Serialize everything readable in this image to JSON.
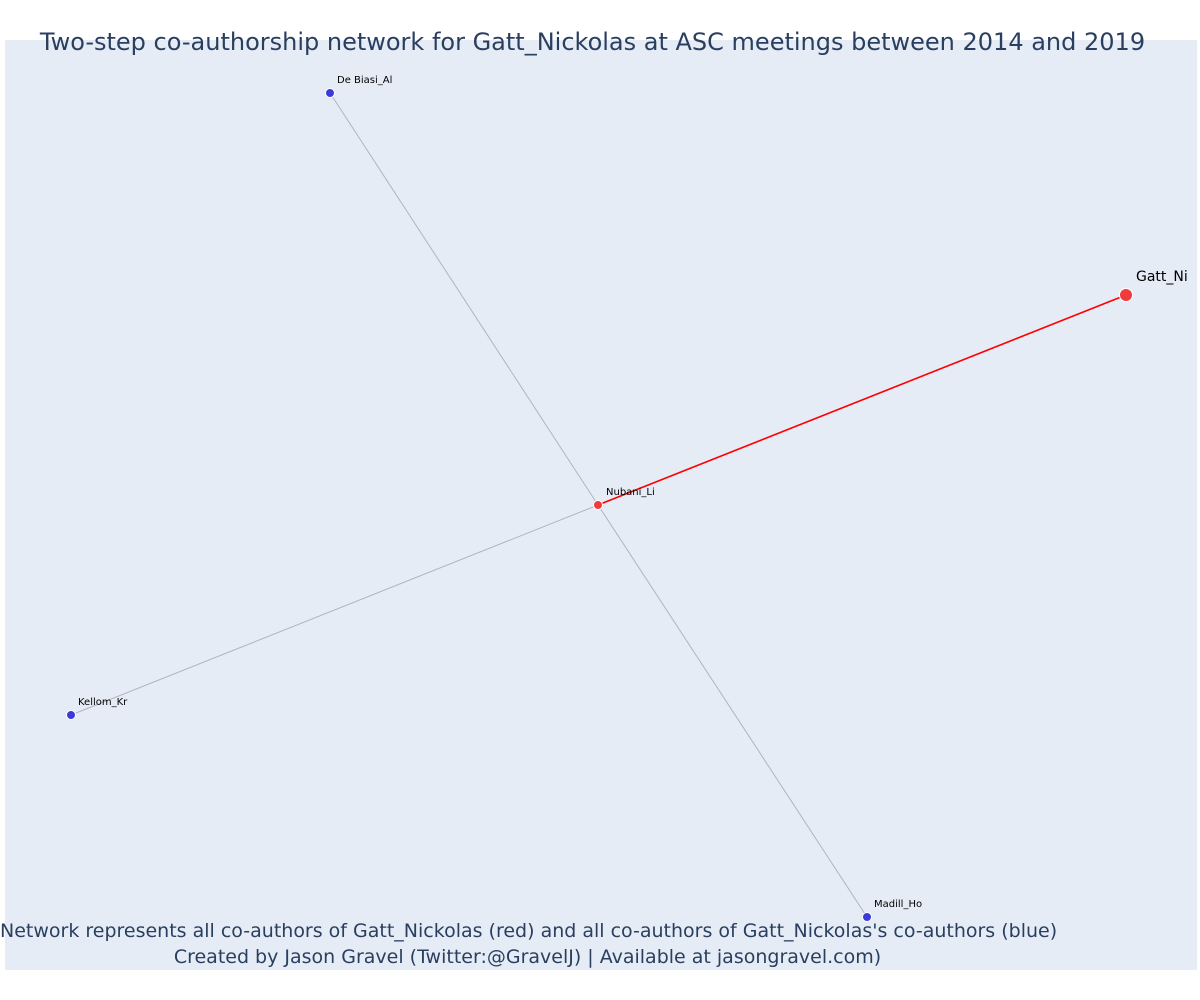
{
  "title": "Two-step co-authorship network for Gatt_Nickolas at ASC meetings between 2014 and 2019",
  "footer": {
    "line1": "Network represents all co-authors of Gatt_Nickolas (red) and all co-authors of Gatt_Nickolas's co-authors (blue)",
    "line2": "Created by Jason Gravel (Twitter:@GravelJ) | Available at jasongravel.com)"
  },
  "colors": {
    "background": "#e5ecf6",
    "focal": "#ef3b3b",
    "first_degree": "#ef3b3b",
    "second_degree": "#3b3bdc",
    "focal_edge": "#ff0000",
    "other_edge": "#b0b4c4",
    "title_text": "#2a3f5f"
  },
  "network": {
    "nodes": [
      {
        "id": "Gatt_Ni",
        "label": "Gatt_Ni",
        "group": "focal"
      },
      {
        "id": "Nubani_Li",
        "label": "Nubani_Li",
        "group": "first_degree"
      },
      {
        "id": "De Biasi_Al",
        "label": "De Biasi_Al",
        "group": "second_degree"
      },
      {
        "id": "Kellom_Kr",
        "label": "Kellom_Kr",
        "group": "second_degree"
      },
      {
        "id": "Madill_Ho",
        "label": "Madill_Ho",
        "group": "second_degree"
      }
    ],
    "edges": [
      {
        "source": "Gatt_Ni",
        "target": "Nubani_Li",
        "type": "focal"
      },
      {
        "source": "Nubani_Li",
        "target": "De Biasi_Al",
        "type": "other"
      },
      {
        "source": "Nubani_Li",
        "target": "Kellom_Kr",
        "type": "other"
      },
      {
        "source": "Nubani_Li",
        "target": "Madill_Ho",
        "type": "other"
      }
    ]
  }
}
